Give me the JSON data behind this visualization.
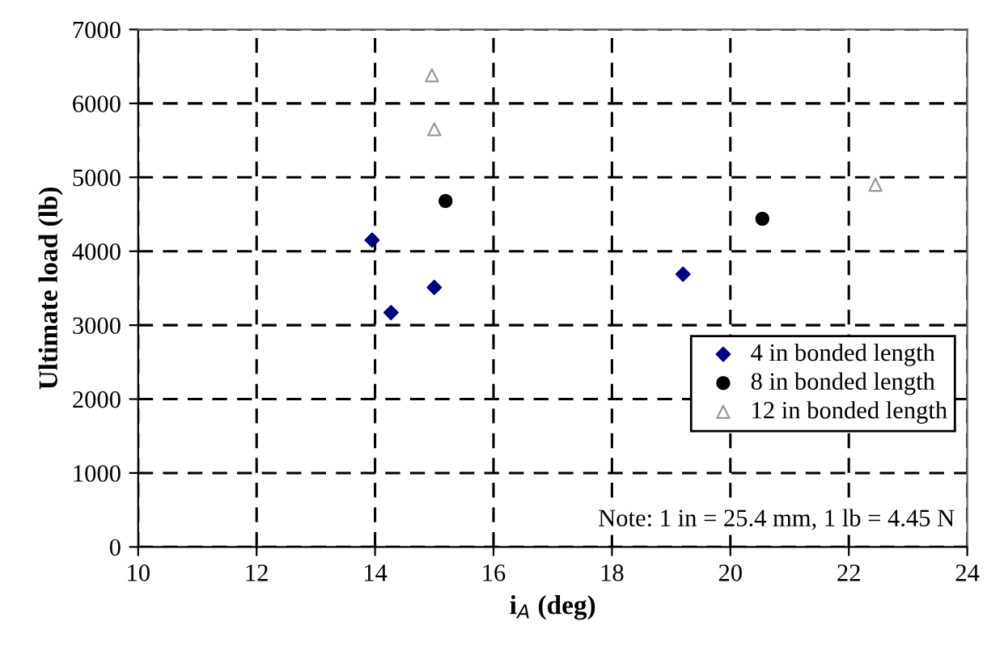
{
  "chart_data": {
    "type": "scatter",
    "xlabel": "i$_{A}$ (deg)",
    "ylabel": "Ultimate load (lb)",
    "xlim": [
      10,
      24
    ],
    "xticks": [
      10,
      12,
      14,
      16,
      18,
      20,
      22,
      24
    ],
    "ylim": [
      0,
      7000
    ],
    "yticks": [
      0,
      1000,
      2000,
      3000,
      4000,
      5000,
      6000,
      7000
    ],
    "grid": true,
    "legend": "bottom right",
    "series": [
      {
        "name": "4 in bonded length",
        "color": "#000080",
        "marker": "diamond",
        "x": [
          13.95,
          14.27,
          15.0,
          19.2
        ],
        "values": [
          4150,
          3170,
          3510,
          3690
        ]
      },
      {
        "name": "8 in bonded length",
        "color": "#000000",
        "marker": "circle",
        "x": [
          15.19,
          20.54
        ],
        "values": [
          4680,
          4440
        ]
      },
      {
        "name": "12 in bonded length",
        "color": "#999999",
        "marker": "triangle",
        "x": [
          14.96,
          15.0,
          22.45
        ],
        "values": [
          6380,
          5650,
          4900
        ]
      }
    ],
    "annotations": [
      "Note: 1 in = 25.4 mm, 1 lb = 4.45 N"
    ]
  }
}
